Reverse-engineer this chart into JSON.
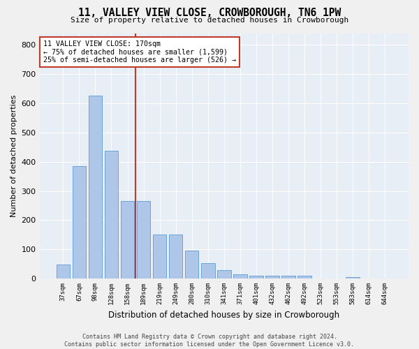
{
  "title": "11, VALLEY VIEW CLOSE, CROWBOROUGH, TN6 1PW",
  "subtitle": "Size of property relative to detached houses in Crowborough",
  "xlabel": "Distribution of detached houses by size in Crowborough",
  "ylabel": "Number of detached properties",
  "categories": [
    "37sqm",
    "67sqm",
    "98sqm",
    "128sqm",
    "158sqm",
    "189sqm",
    "219sqm",
    "249sqm",
    "280sqm",
    "310sqm",
    "341sqm",
    "371sqm",
    "401sqm",
    "432sqm",
    "462sqm",
    "492sqm",
    "523sqm",
    "553sqm",
    "583sqm",
    "614sqm",
    "644sqm"
  ],
  "values": [
    48,
    385,
    625,
    438,
    265,
    265,
    150,
    150,
    95,
    52,
    28,
    15,
    10,
    10,
    10,
    10,
    0,
    0,
    5,
    0,
    0
  ],
  "bar_color": "#aec6e8",
  "bar_edge_color": "#5b9bd5",
  "vline_x": 4.5,
  "vline_color": "#c0392b",
  "annotation_line1": "11 VALLEY VIEW CLOSE: 170sqm",
  "annotation_line2": "← 75% of detached houses are smaller (1,599)",
  "annotation_line3": "25% of semi-detached houses are larger (526) →",
  "annotation_box_color": "#c0392b",
  "ylim": [
    0,
    840
  ],
  "yticks": [
    0,
    100,
    200,
    300,
    400,
    500,
    600,
    700,
    800
  ],
  "fig_background_color": "#f0f0f0",
  "plot_background_color": "#e8eef5",
  "grid_color": "#ffffff",
  "footer": "Contains HM Land Registry data © Crown copyright and database right 2024.\nContains public sector information licensed under the Open Government Licence v3.0."
}
